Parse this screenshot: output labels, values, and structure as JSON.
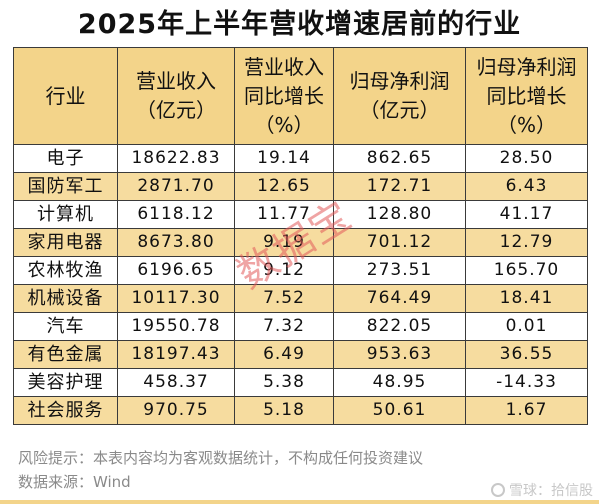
{
  "title": "2025年上半年营收增速居前的行业",
  "columns": [
    {
      "line1": "行业",
      "line2": ""
    },
    {
      "line1": "营业收入",
      "line2": "（亿元）"
    },
    {
      "line1": "营业收入",
      "line2": "同比增长",
      "line3": "（%）"
    },
    {
      "line1": "归母净利润",
      "line2": "（亿元）"
    },
    {
      "line1": "归母净利润",
      "line2": "同比增长",
      "line3": "（%）"
    }
  ],
  "rows": [
    {
      "industry": "电子",
      "revenue": "18622.83",
      "revenue_growth": "19.14",
      "net_profit": "862.65",
      "profit_growth": "28.50"
    },
    {
      "industry": "国防军工",
      "revenue": "2871.70",
      "revenue_growth": "12.65",
      "net_profit": "172.71",
      "profit_growth": "6.43"
    },
    {
      "industry": "计算机",
      "revenue": "6118.12",
      "revenue_growth": "11.77",
      "net_profit": "128.80",
      "profit_growth": "41.17"
    },
    {
      "industry": "家用电器",
      "revenue": "8673.80",
      "revenue_growth": "9.19",
      "net_profit": "701.12",
      "profit_growth": "12.79"
    },
    {
      "industry": "农林牧渔",
      "revenue": "6196.65",
      "revenue_growth": "9.12",
      "net_profit": "273.51",
      "profit_growth": "165.70"
    },
    {
      "industry": "机械设备",
      "revenue": "10117.30",
      "revenue_growth": "7.52",
      "net_profit": "764.49",
      "profit_growth": "18.41"
    },
    {
      "industry": "汽车",
      "revenue": "19550.78",
      "revenue_growth": "7.32",
      "net_profit": "822.05",
      "profit_growth": "0.01"
    },
    {
      "industry": "有色金属",
      "revenue": "18197.43",
      "revenue_growth": "6.49",
      "net_profit": "953.63",
      "profit_growth": "36.55"
    },
    {
      "industry": "美容护理",
      "revenue": "458.37",
      "revenue_growth": "5.38",
      "net_profit": "48.95",
      "profit_growth": "-14.33"
    },
    {
      "industry": "社会服务",
      "revenue": "970.75",
      "revenue_growth": "5.18",
      "net_profit": "50.61",
      "profit_growth": "1.67"
    }
  ],
  "footer": {
    "risk": "风险提示：本表内容均为客观数据统计，不构成任何投资建议",
    "source": "数据来源：Wind"
  },
  "stamp": "数据宝",
  "watermark": "雪球：拾信股",
  "colors": {
    "header_bg": "#f3d48a",
    "alt_row_bg": "#f6dc9f",
    "stamp": "#e15a5a"
  }
}
